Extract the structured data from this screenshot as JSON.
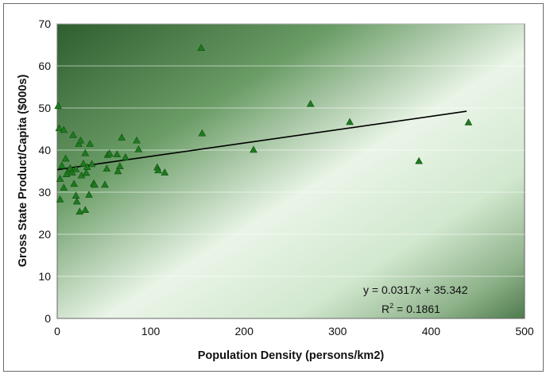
{
  "chart_data": {
    "type": "scatter",
    "title": "",
    "xlabel": "Population Density (persons/km2)",
    "ylabel": "Gross State Product/Capita ($000s)",
    "xlim": [
      0,
      500
    ],
    "ylim": [
      0,
      70
    ],
    "xticks": [
      0,
      100,
      200,
      300,
      400,
      500
    ],
    "yticks": [
      0,
      10,
      20,
      30,
      40,
      50,
      60,
      70
    ],
    "grid": "horizontal",
    "legend": "none",
    "marker_color": "#1f7a1f",
    "series": [
      {
        "name": "",
        "points": [
          [
            1,
            50.5
          ],
          [
            2,
            45.2
          ],
          [
            3,
            28.3
          ],
          [
            3,
            33.2
          ],
          [
            5,
            36.3
          ],
          [
            7,
            44.8
          ],
          [
            7,
            31.1
          ],
          [
            9,
            38.0
          ],
          [
            10,
            34.3
          ],
          [
            12,
            35.2
          ],
          [
            14,
            35.7
          ],
          [
            16,
            34.7
          ],
          [
            17,
            43.6
          ],
          [
            18,
            32.0
          ],
          [
            20,
            35.5
          ],
          [
            20,
            29.2
          ],
          [
            21,
            27.8
          ],
          [
            23,
            41.5
          ],
          [
            24,
            25.4
          ],
          [
            25,
            42.3
          ],
          [
            26,
            34.0
          ],
          [
            28,
            36.8
          ],
          [
            30,
            25.8
          ],
          [
            30,
            39.3
          ],
          [
            31,
            34.6
          ],
          [
            32,
            36.0
          ],
          [
            34,
            29.4
          ],
          [
            35,
            41.5
          ],
          [
            37,
            36.7
          ],
          [
            39,
            32.1
          ],
          [
            40,
            31.8
          ],
          [
            51,
            31.8
          ],
          [
            53,
            35.6
          ],
          [
            54,
            38.9
          ],
          [
            56,
            39.2
          ],
          [
            64,
            39.0
          ],
          [
            65,
            35.0
          ],
          [
            67,
            36.2
          ],
          [
            69,
            43.0
          ],
          [
            73,
            38.3
          ],
          [
            85,
            42.3
          ],
          [
            87,
            40.2
          ],
          [
            107,
            35.9
          ],
          [
            108,
            35.2
          ],
          [
            115,
            34.7
          ],
          [
            154,
            64.3
          ],
          [
            155,
            44.0
          ],
          [
            210,
            40.1
          ],
          [
            271,
            51.0
          ],
          [
            313,
            46.7
          ],
          [
            387,
            37.4
          ],
          [
            440,
            46.6
          ]
        ]
      }
    ],
    "trendline": {
      "type": "linear",
      "slope": 0.0317,
      "intercept": 35.342,
      "x_range": [
        0,
        438
      ],
      "equation_label": "y = 0.0317x + 35.342",
      "r2_prefix": "R",
      "r2_exp": "2",
      "r2_value": " = 0.1861"
    }
  }
}
